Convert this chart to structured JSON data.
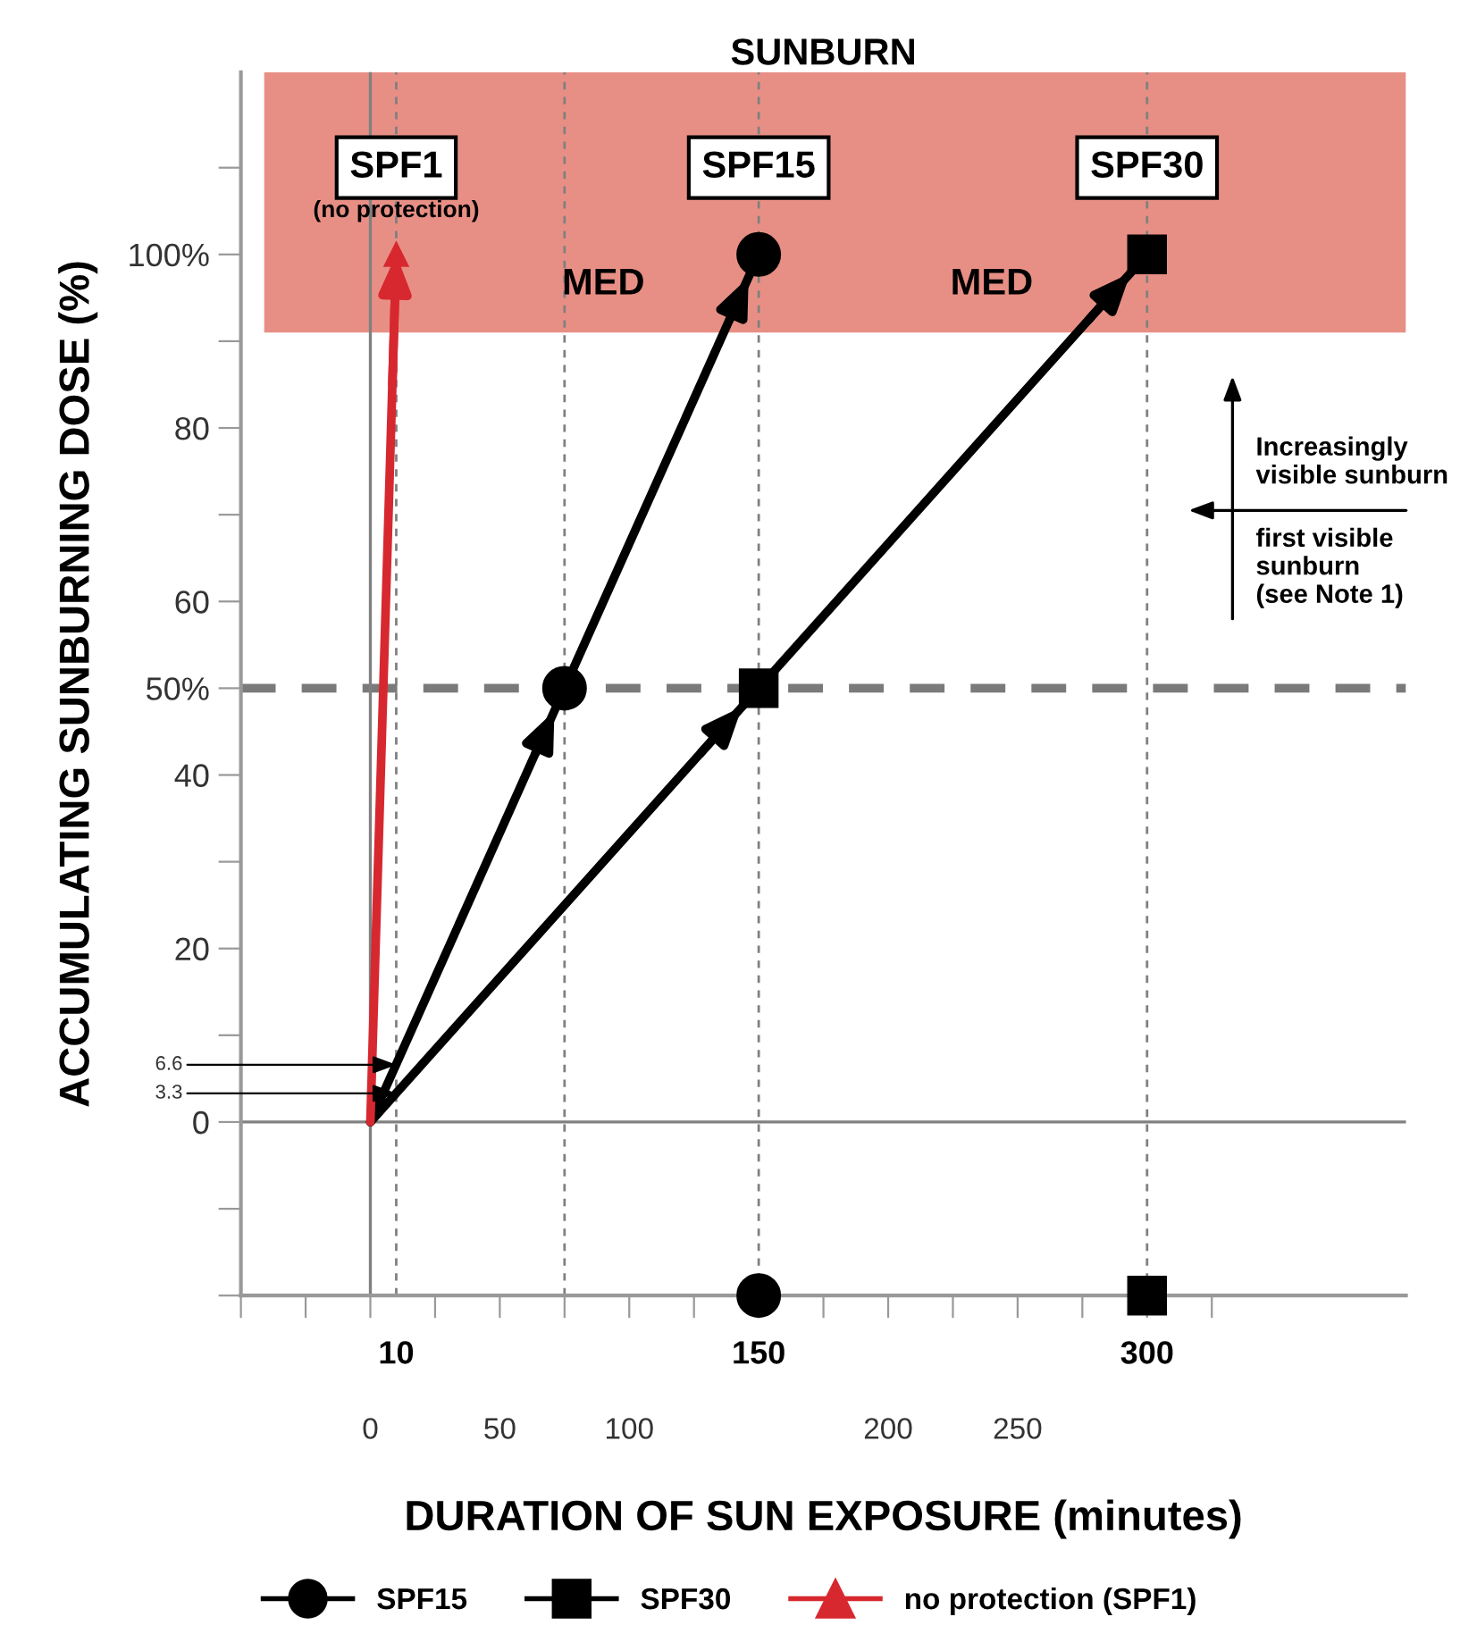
{
  "chart_data": {
    "type": "line",
    "xlabel": "DURATION OF SUN EXPOSURE (minutes)",
    "ylabel": "ACCUMULATING SUNBURNING DOSE (%)",
    "series": [
      {
        "name": "SPF15",
        "color": "#000000",
        "x": [
          0,
          75,
          150
        ],
        "values": [
          0,
          50,
          100
        ],
        "marker": "circle"
      },
      {
        "name": "SPF30",
        "color": "#000000",
        "x": [
          0,
          150,
          300
        ],
        "values": [
          0,
          50,
          100
        ],
        "marker": "square"
      },
      {
        "name": "no protection (SPF1)",
        "color": "#d7282f",
        "x": [
          0,
          10
        ],
        "values": [
          0,
          100
        ],
        "marker": "triangle"
      },
      {
        "type": "scatter",
        "color": "#000000",
        "x": [
          150
        ],
        "values": [
          -20
        ],
        "marker": "circle"
      },
      {
        "type": "scatter",
        "color": "#000000",
        "x": [
          300
        ],
        "values": [
          -20
        ],
        "marker": "square"
      }
    ],
    "xlim": [
      -50,
      400
    ],
    "ylim": [
      -20,
      121
    ],
    "xticks": [
      {
        "value": -50,
        "label": null
      },
      {
        "value": -25,
        "label": null
      },
      0,
      {
        "value": 25,
        "label": null
      },
      50,
      {
        "value": 75,
        "label": null
      },
      100,
      {
        "value": 125,
        "label": null
      },
      {
        "value": 150,
        "label": null
      },
      {
        "value": 175,
        "label": null
      },
      200,
      {
        "value": 225,
        "label": null
      },
      250,
      {
        "value": 275,
        "label": null
      },
      {
        "value": 300,
        "label": null
      },
      {
        "value": 325,
        "label": null
      }
    ],
    "yticks": [
      {
        "value": -20,
        "label": null
      },
      {
        "value": -10,
        "label": null
      },
      0,
      {
        "value": 10,
        "label": null
      },
      20,
      {
        "value": 30,
        "label": null
      },
      40,
      {
        "value": 50,
        "label": "50%"
      },
      60,
      {
        "value": 70,
        "label": null
      },
      80,
      {
        "value": 90,
        "label": null
      },
      {
        "value": 100,
        "label": "100%"
      },
      {
        "value": 110,
        "label": null
      }
    ],
    "ref_lines": [
      {
        "axis": "y",
        "value": 0,
        "color": "#808080",
        "line_style": "solid"
      },
      {
        "axis": "y",
        "value": 50,
        "color": "#7a7a7a",
        "line_style": "dashed"
      },
      {
        "axis": "x",
        "value": 0,
        "color": "#808080",
        "line_style": "solid"
      },
      {
        "axis": "x",
        "value": 10,
        "color": "#808080",
        "line_style": "dotted"
      },
      {
        "axis": "x",
        "value": 75,
        "color": "#808080",
        "line_style": "dotted"
      },
      {
        "axis": "x",
        "value": 150,
        "color": "#808080",
        "line_style": "dotted"
      },
      {
        "axis": "x",
        "value": 300,
        "color": "#808080",
        "line_style": "dotted"
      }
    ],
    "bands": [
      {
        "axis": "y",
        "from": 91,
        "to": 121,
        "label": "SUNBURN",
        "color": "#e06a5c"
      }
    ],
    "annotations": [
      {
        "text": "SPF1",
        "x": 10,
        "y": 110
      },
      {
        "text": "SPF15",
        "x": 150,
        "y": 110
      },
      {
        "text": "SPF30",
        "x": 300,
        "y": 110
      },
      "(no protection)",
      "MED",
      "MED",
      "Increasingly\nvisible sunburn",
      "first visible\nsunburn\n(see Note 1)",
      {
        "text": "6.6",
        "x": 10,
        "y": 6.6
      },
      {
        "text": "3.3",
        "x": 10,
        "y": 3.3
      }
    ],
    "x2lim": [
      -50,
      400
    ],
    "x2ticks": [
      10,
      150,
      300
    ],
    "legend": "bottom",
    "line_style": "solid",
    "grid": false
  }
}
